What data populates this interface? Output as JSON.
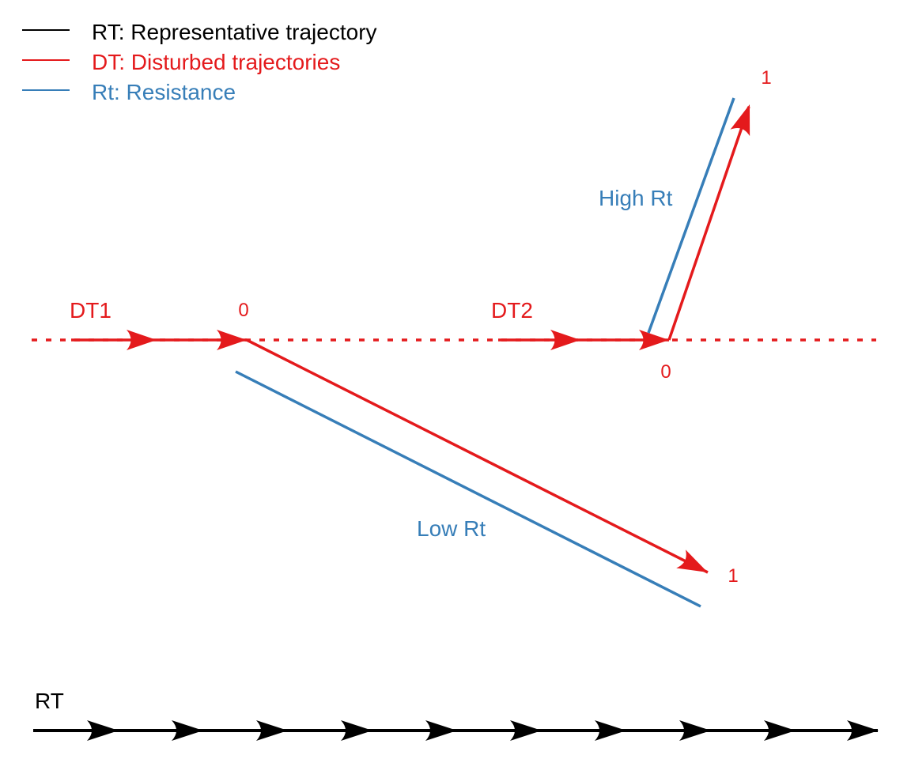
{
  "colors": {
    "rt": "#000000",
    "dt": "#e41a1c",
    "rt_resistance": "#377eb8"
  },
  "legend": {
    "items": [
      {
        "key": "rt",
        "label": "RT: Representative trajectory"
      },
      {
        "key": "dt",
        "label": "DT: Disturbed trajectories"
      },
      {
        "key": "rt_resistance",
        "label": "Rt: Resistance"
      }
    ]
  },
  "labels": {
    "dt1": "DT1",
    "dt2": "DT2",
    "dt1_start": "0",
    "dt1_end": "1",
    "dt2_start": "0",
    "dt2_end": "1",
    "low_rt": "Low Rt",
    "high_rt": "High Rt",
    "rt": "RT"
  }
}
